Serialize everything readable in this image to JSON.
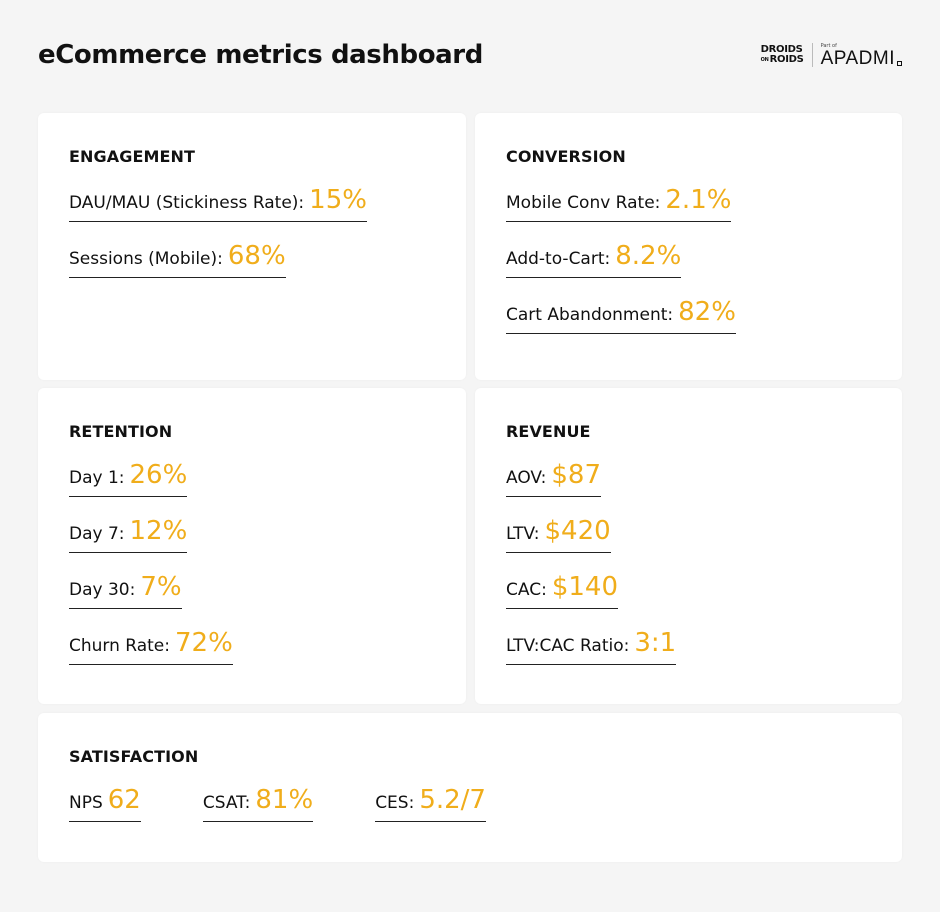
{
  "title": "eCommerce metrics dashboard",
  "brand": {
    "droids_line1": "DROIDS",
    "droids_on": "ON",
    "droids_line2": "ROIDS",
    "part_of": "Part of",
    "apadmi": "APADMI"
  },
  "colors": {
    "accent": "#f0ad1b",
    "card": "#ffffff",
    "background": "#f5f5f5"
  },
  "cards": {
    "engagement": {
      "heading": "ENGAGEMENT",
      "metrics": [
        {
          "label": "DAU/MAU (Stickiness Rate):",
          "value": "15%"
        },
        {
          "label": "Sessions (Mobile):",
          "value": "68%"
        }
      ]
    },
    "conversion": {
      "heading": "CONVERSION",
      "metrics": [
        {
          "label": "Mobile Conv Rate:",
          "value": "2.1%"
        },
        {
          "label": "Add-to-Cart:",
          "value": "8.2%"
        },
        {
          "label": "Cart Abandonment:",
          "value": "82%"
        }
      ]
    },
    "retention": {
      "heading": "RETENTION",
      "metrics": [
        {
          "label": "Day 1:",
          "value": "26%"
        },
        {
          "label": "Day 7:",
          "value": "12%"
        },
        {
          "label": "Day 30:",
          "value": "7%"
        },
        {
          "label": "Churn Rate:",
          "value": "72%"
        }
      ]
    },
    "revenue": {
      "heading": "REVENUE",
      "metrics": [
        {
          "label": "AOV:",
          "value": "$87"
        },
        {
          "label": "LTV:",
          "value": "$420"
        },
        {
          "label": "CAC:",
          "value": "$140"
        },
        {
          "label": "LTV:CAC Ratio:",
          "value": "3:1"
        }
      ]
    },
    "satisfaction": {
      "heading": "SATISFACTION",
      "metrics": [
        {
          "label": "NPS",
          "value": "62"
        },
        {
          "label": "CSAT:",
          "value": "81%"
        },
        {
          "label": "CES:",
          "value": "5.2/7"
        }
      ]
    }
  }
}
